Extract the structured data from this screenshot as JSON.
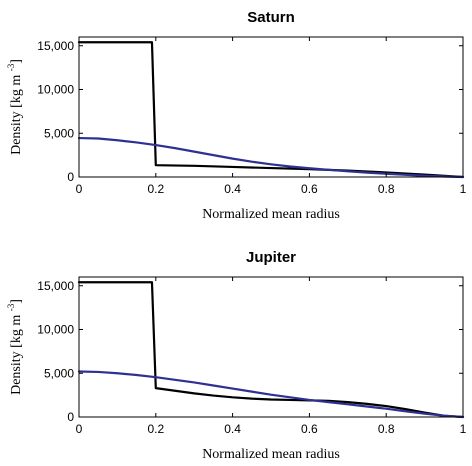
{
  "chart_data": [
    {
      "type": "line",
      "title": "Saturn",
      "xlabel": "Normalized mean radius",
      "ylabel": "Density [kg m",
      "ylabel_sup": "-3",
      "ylabel_close": "]",
      "xlim": [
        0,
        1
      ],
      "ylim": [
        0,
        16000
      ],
      "xticks": [
        0,
        0.2,
        0.4,
        0.6,
        0.8,
        1
      ],
      "xtick_labels": [
        "0",
        "0.2",
        "0.4",
        "0.6",
        "0.8",
        "1"
      ],
      "yticks": [
        0,
        5000,
        10000,
        15000
      ],
      "ytick_labels": [
        "0",
        "5,000",
        "10,000",
        "15,000"
      ],
      "grid": false,
      "series": [
        {
          "color": "#000000",
          "x": [
            0,
            0.19,
            0.2,
            0.3,
            0.4,
            0.5,
            0.6,
            0.7,
            0.8,
            0.9,
            1.0
          ],
          "y": [
            15400,
            15400,
            1350,
            1280,
            1150,
            1020,
            900,
            730,
            520,
            280,
            0
          ]
        },
        {
          "color": "#2e3192",
          "x": [
            0,
            0.05,
            0.1,
            0.15,
            0.2,
            0.25,
            0.3,
            0.35,
            0.4,
            0.45,
            0.5,
            0.55,
            0.6,
            0.65,
            0.7,
            0.75,
            0.8,
            0.85,
            0.9,
            0.95,
            1.0
          ],
          "y": [
            4450,
            4400,
            4200,
            3950,
            3650,
            3300,
            2900,
            2500,
            2100,
            1750,
            1450,
            1200,
            1000,
            820,
            650,
            500,
            370,
            250,
            140,
            60,
            0
          ]
        }
      ]
    },
    {
      "type": "line",
      "title": "Jupiter",
      "xlabel": "Normalized mean radius",
      "ylabel": "Density [kg m",
      "ylabel_sup": "-3",
      "ylabel_close": "]",
      "xlim": [
        0,
        1
      ],
      "ylim": [
        0,
        16000
      ],
      "xticks": [
        0,
        0.2,
        0.4,
        0.6,
        0.8,
        1
      ],
      "xtick_labels": [
        "0",
        "0.2",
        "0.4",
        "0.6",
        "0.8",
        "1"
      ],
      "yticks": [
        0,
        5000,
        10000,
        15000
      ],
      "ytick_labels": [
        "0",
        "5,000",
        "10,000",
        "15,000"
      ],
      "grid": false,
      "series": [
        {
          "color": "#000000",
          "x": [
            0,
            0.19,
            0.2,
            0.25,
            0.3,
            0.35,
            0.4,
            0.45,
            0.5,
            0.55,
            0.6,
            0.65,
            0.7,
            0.75,
            0.8,
            0.85,
            0.9,
            0.95,
            1.0
          ],
          "y": [
            15400,
            15400,
            3300,
            3000,
            2700,
            2450,
            2250,
            2100,
            2000,
            1950,
            1900,
            1850,
            1700,
            1500,
            1250,
            900,
            500,
            150,
            0
          ]
        },
        {
          "color": "#2e3192",
          "x": [
            0,
            0.05,
            0.1,
            0.15,
            0.2,
            0.25,
            0.3,
            0.35,
            0.4,
            0.45,
            0.5,
            0.55,
            0.6,
            0.65,
            0.7,
            0.75,
            0.8,
            0.85,
            0.9,
            0.95,
            1.0
          ],
          "y": [
            5200,
            5150,
            5000,
            4800,
            4550,
            4250,
            3950,
            3600,
            3250,
            2900,
            2550,
            2250,
            1950,
            1700,
            1450,
            1200,
            950,
            650,
            380,
            150,
            0
          ]
        }
      ]
    }
  ]
}
